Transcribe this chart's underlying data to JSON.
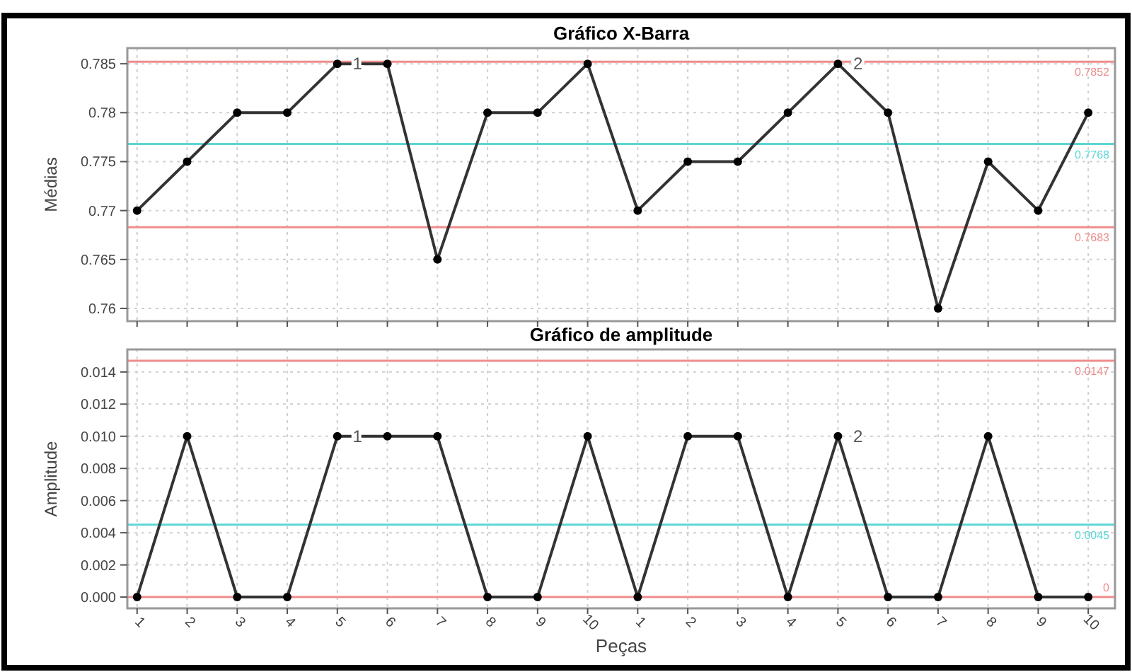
{
  "chart_data": [
    {
      "type": "line",
      "title": "Gráfico X-Barra",
      "ylabel": "Médias",
      "categories": [
        null,
        null,
        null,
        null,
        null,
        null,
        null,
        null,
        null,
        null,
        null,
        null,
        null,
        null,
        null,
        null,
        null,
        null,
        null,
        null
      ],
      "ylim": [
        0.7587,
        0.7866
      ],
      "yticks": [
        0.76,
        0.765,
        0.77,
        0.775,
        0.78,
        0.785
      ],
      "series": [
        {
          "color": "#333333",
          "values": [
            0.77,
            0.775,
            0.78,
            0.78,
            0.785,
            0.785,
            0.765,
            0.78,
            0.78,
            0.785,
            0.77,
            0.775,
            0.775,
            0.78,
            0.785,
            0.78,
            0.76,
            0.775,
            0.77,
            0.78
          ]
        }
      ],
      "ref_lines": [
        {
          "axis": "y",
          "value": 0.7852,
          "label": "0.7852",
          "color": "#f08c8c"
        },
        {
          "axis": "y",
          "value": 0.7768,
          "label": "0.7768",
          "color": "#5cd6d6"
        },
        {
          "axis": "y",
          "value": 0.7683,
          "label": "0.7683",
          "color": "#f08c8c"
        }
      ],
      "annotations": [
        "1",
        "2"
      ],
      "marker": "circle",
      "grid": true
    },
    {
      "type": "line",
      "title": "Gráfico de amplitude",
      "ylabel": "Amplitude",
      "xlabel": "Peças",
      "categories": [
        "1",
        "2",
        "3",
        "4",
        "5",
        "6",
        "7",
        "8",
        "9",
        "10",
        "1",
        "2",
        "3",
        "4",
        "5",
        "6",
        "7",
        "8",
        "9",
        "10"
      ],
      "ylim": [
        -0.0007,
        0.0154
      ],
      "yticks": [
        {
          "value": 0,
          "label": "0.000"
        },
        {
          "value": 0.002,
          "label": "0.002"
        },
        {
          "value": 0.004,
          "label": "0.004"
        },
        {
          "value": 0.006,
          "label": "0.006"
        },
        {
          "value": 0.008,
          "label": "0.008"
        },
        {
          "value": 0.01,
          "label": "0.010"
        },
        {
          "value": 0.012,
          "label": "0.012"
        },
        {
          "value": 0.014,
          "label": "0.014"
        }
      ],
      "series": [
        {
          "color": "#333333",
          "values": [
            0,
            0.01,
            0,
            0,
            0.01,
            0.01,
            0.01,
            0,
            0,
            0.01,
            0,
            0.01,
            0.01,
            0,
            0.01,
            0,
            0,
            0.01,
            0,
            0
          ]
        }
      ],
      "ref_lines": [
        {
          "axis": "y",
          "value": 0.0147,
          "label": "0.0147",
          "color": "#f08c8c"
        },
        {
          "axis": "y",
          "value": 0.0045,
          "label": "0.0045",
          "color": "#5cd6d6"
        },
        {
          "axis": "y",
          "value": 0,
          "label": "0",
          "color": "#f08c8c"
        }
      ],
      "annotations": [
        "1",
        "2"
      ],
      "marker": "circle",
      "grid": true
    }
  ]
}
